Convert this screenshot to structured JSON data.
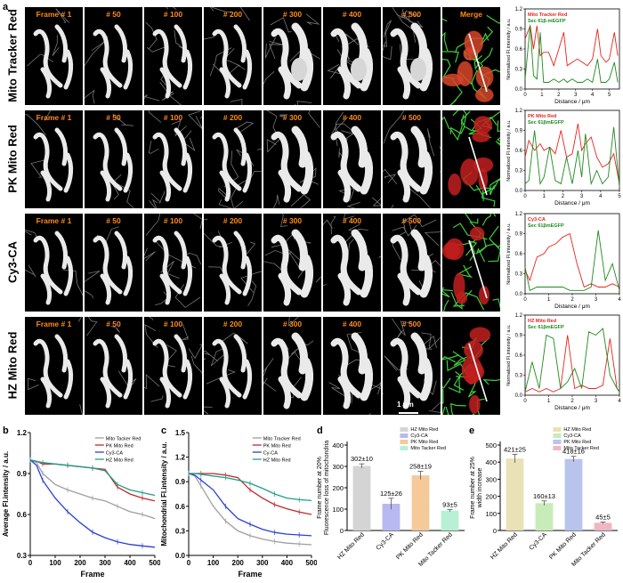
{
  "panel_letters": {
    "a": "a",
    "b": "b",
    "c": "c",
    "d": "d",
    "e": "e"
  },
  "rows": [
    {
      "label": "Mito Tracker Red"
    },
    {
      "label": "PK Mito Red"
    },
    {
      "label": "Cy3-CA"
    },
    {
      "label": "HZ Mito Red"
    }
  ],
  "frame_labels": [
    "Frame # 1",
    "# 50",
    "# 100",
    "# 200",
    "# 300",
    "# 400",
    "# 500",
    "Merge"
  ],
  "scale_bar_label": "1 μm",
  "chart_data": [
    {
      "type": "line",
      "id": "profile-1",
      "ylabel": "Normalized Fl.intensity / a.u.",
      "xlabel": "Distance / μm",
      "ylim": [
        0,
        1.2
      ],
      "xlim": [
        0,
        5.6
      ],
      "xticks": [
        "0",
        "1",
        "2",
        "3",
        "4",
        "5"
      ],
      "yticks": [
        "0.0",
        "0.3",
        "0.6",
        "0.9",
        "1.2"
      ],
      "series": [
        {
          "name": "Mito Tracker Red",
          "color": "#e8231c",
          "x": [
            0,
            0.3,
            0.5,
            0.7,
            0.9,
            1.1,
            1.4,
            1.7,
            2.0,
            2.3,
            2.5,
            2.8,
            3.1,
            3.4,
            3.7,
            4.0,
            4.3,
            4.5,
            4.8,
            5.0,
            5.3,
            5.5
          ],
          "y": [
            0.75,
            0.95,
            0.6,
            0.95,
            0.5,
            0.55,
            0.55,
            0.35,
            0.6,
            0.85,
            0.35,
            0.4,
            0.45,
            0.4,
            0.35,
            0.45,
            0.9,
            0.5,
            0.4,
            0.45,
            0.85,
            0.5
          ]
        },
        {
          "name": "Sec 61β-mEGFP",
          "color": "#1d8a1d",
          "x": [
            0,
            0.3,
            0.5,
            0.7,
            0.9,
            1.1,
            1.4,
            1.7,
            2.0,
            2.3,
            2.5,
            2.8,
            3.1,
            3.4,
            3.7,
            4.0,
            4.3,
            4.5,
            4.8,
            5.0,
            5.3,
            5.5
          ],
          "y": [
            0.15,
            0.95,
            0.2,
            0.15,
            0.85,
            0.1,
            0.1,
            0.15,
            0.1,
            0.15,
            0.1,
            0.15,
            0.1,
            0.1,
            0.15,
            0.1,
            0.45,
            0.1,
            0.1,
            0.15,
            0.4,
            0.1
          ]
        }
      ]
    },
    {
      "type": "line",
      "id": "profile-2",
      "ylabel": "Normalized Fl.intensity / a.u.",
      "xlabel": "Distance / μm",
      "ylim": [
        0,
        1.2
      ],
      "xlim": [
        0,
        5
      ],
      "xticks": [
        "0",
        "1",
        "2",
        "3",
        "4",
        "5"
      ],
      "yticks": [
        "0.0",
        "0.3",
        "0.6",
        "0.9",
        "1.2"
      ],
      "series": [
        {
          "name": "PK Mito Red",
          "color": "#e8231c",
          "x": [
            0,
            0.2,
            0.5,
            0.8,
            1.0,
            1.3,
            1.6,
            1.9,
            2.2,
            2.5,
            2.8,
            3.0,
            3.2,
            3.5,
            3.8,
            4.1,
            4.4,
            4.7,
            5.0
          ],
          "y": [
            0.5,
            0.75,
            0.6,
            0.7,
            0.6,
            0.65,
            0.55,
            0.9,
            0.5,
            0.55,
            1.0,
            0.6,
            0.7,
            0.8,
            0.5,
            0.35,
            0.4,
            0.55,
            0.1
          ]
        },
        {
          "name": "Sec 61βmEGFP",
          "color": "#1d8a1d",
          "x": [
            0,
            0.2,
            0.5,
            0.8,
            1.0,
            1.3,
            1.6,
            1.9,
            2.2,
            2.5,
            2.8,
            3.0,
            3.2,
            3.5,
            3.8,
            4.1,
            4.4,
            4.7,
            5.0
          ],
          "y": [
            0.1,
            0.15,
            0.9,
            0.1,
            0.2,
            0.65,
            0.15,
            0.1,
            0.5,
            0.1,
            0.6,
            0.2,
            0.85,
            0.1,
            0.3,
            0.1,
            0.2,
            0.95,
            0.05
          ]
        }
      ]
    },
    {
      "type": "line",
      "id": "profile-3",
      "ylabel": "Normalized Fl.intensity / a.u.",
      "xlabel": "Distance / μm",
      "ylim": [
        0,
        1.2
      ],
      "xlim": [
        0,
        4
      ],
      "xticks": [
        "0",
        "1",
        "2",
        "3",
        "4"
      ],
      "yticks": [
        "0.0",
        "0.3",
        "0.6",
        "0.9",
        "1.2"
      ],
      "series": [
        {
          "name": "Cy3-CA",
          "color": "#e8231c",
          "x": [
            0,
            0.2,
            0.5,
            0.8,
            1.0,
            1.3,
            1.6,
            1.9,
            2.2,
            2.5,
            2.8,
            3.1,
            3.4,
            3.7,
            4.0
          ],
          "y": [
            0.35,
            0.2,
            0.55,
            0.6,
            0.7,
            0.75,
            0.85,
            0.9,
            0.45,
            0.1,
            0.15,
            0.1,
            0.1,
            0.15,
            0.1
          ]
        },
        {
          "name": "Sec 61βmEGFP",
          "color": "#1d8a1d",
          "x": [
            0,
            0.2,
            0.5,
            0.8,
            1.0,
            1.3,
            1.6,
            1.9,
            2.2,
            2.5,
            2.8,
            3.1,
            3.4,
            3.7,
            4.0
          ],
          "y": [
            0.4,
            0.05,
            0.1,
            0.1,
            0.1,
            0.1,
            0.1,
            0.05,
            0.05,
            0.05,
            0.1,
            0.95,
            0.2,
            0.45,
            0.05
          ]
        }
      ]
    },
    {
      "type": "line",
      "id": "profile-4",
      "ylabel": "Normalized Fl.intensity / a.u.",
      "xlabel": "Distance / μm",
      "ylim": [
        0,
        1.2
      ],
      "xlim": [
        0,
        4
      ],
      "xticks": [
        "0",
        "1",
        "2",
        "3",
        "4"
      ],
      "yticks": [
        "0.0",
        "0.3",
        "0.6",
        "0.9",
        "1.2"
      ],
      "series": [
        {
          "name": "HZ Mito Red",
          "color": "#e8231c",
          "x": [
            0,
            0.3,
            0.6,
            0.9,
            1.2,
            1.5,
            1.8,
            2.1,
            2.4,
            2.7,
            3.0,
            3.3,
            3.6,
            3.9,
            4.0
          ],
          "y": [
            0.05,
            0.1,
            0.05,
            0.1,
            0.05,
            0.1,
            0.9,
            0.1,
            0.15,
            0.1,
            0.1,
            0.15,
            0.85,
            0.1,
            0.05
          ]
        },
        {
          "name": "Sec 61βmEGFP",
          "color": "#1d8a1d",
          "x": [
            0,
            0.3,
            0.6,
            0.9,
            1.2,
            1.5,
            1.8,
            2.1,
            2.4,
            2.7,
            3.0,
            3.3,
            3.6,
            3.9,
            4.0
          ],
          "y": [
            0.05,
            0.5,
            0.1,
            0.9,
            0.85,
            0.1,
            0.2,
            0.4,
            0.1,
            0.95,
            0.9,
            1.0,
            0.3,
            0.1,
            0.05
          ]
        }
      ]
    },
    {
      "type": "line",
      "id": "chart-b",
      "xlabel": "Frame",
      "ylabel": "Average Fl.intensity / a.u.",
      "xlim": [
        0,
        500
      ],
      "ylim": [
        0.3,
        1.2
      ],
      "xticks": [
        "0",
        "100",
        "200",
        "300",
        "400",
        "500"
      ],
      "yticks": [
        "0.3",
        "0.6",
        "0.9",
        "1.2"
      ],
      "series": [
        {
          "name": "Mito Tacker Red",
          "color": "#9e9e9e",
          "x": [
            0,
            25,
            50,
            100,
            150,
            200,
            250,
            300,
            350,
            400,
            450,
            500
          ],
          "y": [
            1.0,
            0.98,
            0.9,
            0.82,
            0.78,
            0.75,
            0.72,
            0.7,
            0.66,
            0.62,
            0.6,
            0.57
          ]
        },
        {
          "name": "PK Mito Red",
          "color": "#c0282d",
          "x": [
            0,
            25,
            50,
            100,
            150,
            200,
            250,
            300,
            350,
            400,
            450,
            500
          ],
          "y": [
            1.0,
            0.99,
            0.97,
            0.97,
            0.96,
            0.95,
            0.94,
            0.93,
            0.8,
            0.75,
            0.72,
            0.7
          ]
        },
        {
          "name": "Cy3-CA",
          "color": "#2b3fd6",
          "x": [
            0,
            25,
            50,
            100,
            150,
            200,
            250,
            300,
            350,
            400,
            450,
            500
          ],
          "y": [
            1.0,
            0.96,
            0.85,
            0.72,
            0.62,
            0.54,
            0.47,
            0.43,
            0.4,
            0.38,
            0.37,
            0.36
          ]
        },
        {
          "name": "HZ Mito Red",
          "color": "#1e9e8c",
          "x": [
            0,
            25,
            50,
            100,
            150,
            200,
            250,
            300,
            350,
            400,
            450,
            500
          ],
          "y": [
            1.0,
            0.99,
            0.98,
            0.97,
            0.96,
            0.95,
            0.94,
            0.92,
            0.82,
            0.78,
            0.76,
            0.74
          ]
        }
      ]
    },
    {
      "type": "line",
      "id": "chart-c",
      "xlabel": "Frame",
      "ylabel": "Mitochondrial Fl.intensity / a.u.",
      "xlim": [
        0,
        500
      ],
      "ylim": [
        0.0,
        1.5
      ],
      "xticks": [
        "0",
        "100",
        "200",
        "300",
        "400",
        "500"
      ],
      "yticks": [
        "0.0",
        "0.3",
        "0.6",
        "0.9",
        "1.2",
        "1.5"
      ],
      "series": [
        {
          "name": "Mito Tracker Red",
          "color": "#9e9e9e",
          "x": [
            0,
            25,
            50,
            100,
            150,
            200,
            250,
            300,
            350,
            400,
            450,
            500
          ],
          "y": [
            1.0,
            0.97,
            0.85,
            0.6,
            0.42,
            0.3,
            0.24,
            0.2,
            0.17,
            0.15,
            0.14,
            0.13
          ]
        },
        {
          "name": "PK Mito Red",
          "color": "#c0282d",
          "x": [
            0,
            25,
            50,
            100,
            150,
            200,
            250,
            300,
            350,
            400,
            450,
            500
          ],
          "y": [
            1.0,
            1.0,
            1.0,
            1.0,
            0.98,
            0.95,
            0.8,
            0.7,
            0.62,
            0.57,
            0.53,
            0.5
          ]
        },
        {
          "name": "Cy-CA",
          "color": "#2b3fd6",
          "x": [
            0,
            25,
            50,
            100,
            150,
            200,
            250,
            300,
            350,
            400,
            450,
            500
          ],
          "y": [
            1.0,
            0.98,
            0.92,
            0.8,
            0.6,
            0.45,
            0.38,
            0.32,
            0.28,
            0.26,
            0.25,
            0.24
          ]
        },
        {
          "name": "HZ Mito Red",
          "color": "#1e9e8c",
          "x": [
            0,
            25,
            50,
            100,
            150,
            200,
            250,
            300,
            350,
            400,
            450,
            500
          ],
          "y": [
            1.0,
            1.0,
            0.99,
            0.97,
            0.95,
            0.92,
            0.88,
            0.82,
            0.75,
            0.7,
            0.68,
            0.67
          ]
        }
      ]
    },
    {
      "type": "bar",
      "id": "chart-d",
      "ylabel": "Frame number at 20%\nFluorescence loss of mitochondria",
      "ylim": [
        0,
        400
      ],
      "yticks": [
        "0",
        "100",
        "200",
        "300",
        "400"
      ],
      "categories": [
        "HZ Mito Red",
        "Cy3-CA",
        "PK Mito Red",
        "Mito Tacker Red"
      ],
      "values": [
        302,
        125,
        258,
        93
      ],
      "errors": [
        10,
        26,
        19,
        5
      ],
      "labels": [
        "302±10",
        "125±26",
        "258±19",
        "93±5"
      ],
      "colors": [
        "#d4d4d4",
        "#b7b9f0",
        "#f5c99a",
        "#b7f0d4"
      ],
      "legend": [
        "HZ Mito Red",
        "Cy3-CA",
        "PK Mito Red",
        "Mito Tacker Red"
      ]
    },
    {
      "type": "bar",
      "id": "chart-e",
      "ylabel": "Frame number at 25%\nwidth increase",
      "ylim": [
        0,
        500
      ],
      "yticks": [
        "0",
        "100",
        "200",
        "300",
        "400",
        "500"
      ],
      "categories": [
        "HZ Mito Red",
        "Cy3-CA",
        "PK Mito Red",
        "Mito Tacker Red"
      ],
      "values": [
        421,
        160,
        418,
        45
      ],
      "errors": [
        25,
        13,
        16,
        5
      ],
      "labels": [
        "421±25",
        "160±13",
        "418±16",
        "45±5"
      ],
      "colors": [
        "#e8e2b6",
        "#c8ecb8",
        "#b8c4ec",
        "#f0b6c2"
      ],
      "legend": [
        "HZ Mito Red",
        "Cy3-CA",
        "PK Mito Red",
        "Mito Tacker Red"
      ]
    }
  ]
}
